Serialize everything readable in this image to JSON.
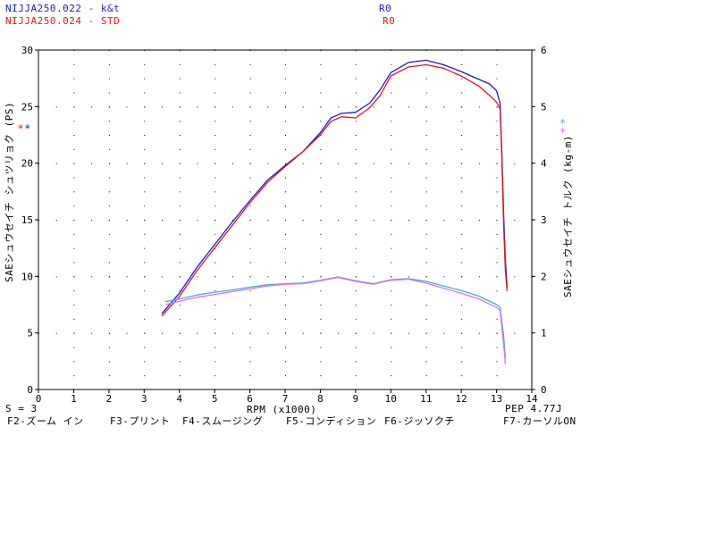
{
  "header": {
    "run1_name": "NIJJA250.022 - k&t",
    "run1_code": "R0",
    "run2_name": "NIJJA250.024 - STD",
    "run2_code": "R0"
  },
  "markers": {
    "left": "* *",
    "right_top": "*",
    "right_bottom": "*"
  },
  "status": {
    "smoothing": "S = 3",
    "pep": "PEP 4.77J"
  },
  "function_keys": [
    "F2-ズーム イン",
    "F3-プリント",
    "F4-スムージング",
    "F5-コンディション",
    "F6-ジッソクチ",
    "F7-カーソルON"
  ],
  "colors": {
    "run1_power": "#1a1acc",
    "run2_power": "#e01818",
    "run1_torque": "#4aa8e0",
    "run2_torque": "#e070e0",
    "grid_dots": "#000000"
  },
  "chart_data": {
    "type": "line",
    "xlabel": "RPM (x1000)",
    "ylabel": "SAEシュウセイチ シュツリョク (PS)",
    "ylabel_right": "SAEシュウセイチ トルク (kg-m)",
    "xlim": [
      0,
      14
    ],
    "ylim": [
      0,
      30
    ],
    "ylim_right": [
      0,
      6
    ],
    "x_ticks": [
      0,
      1,
      2,
      3,
      4,
      5,
      6,
      7,
      8,
      9,
      10,
      11,
      12,
      13,
      14
    ],
    "y_ticks": [
      0,
      5,
      10,
      15,
      20,
      25,
      30
    ],
    "y_ticks_right": [
      0,
      1,
      2,
      3,
      4,
      5,
      6
    ],
    "grid": "dotted",
    "series": [
      {
        "name": "NIJJA250.022 - k&t",
        "axis": "left",
        "x": [
          3.5,
          4.0,
          4.5,
          5.0,
          5.5,
          6.0,
          6.5,
          7.0,
          7.5,
          8.0,
          8.3,
          8.6,
          9.0,
          9.4,
          9.7,
          10.0,
          10.5,
          11.0,
          11.5,
          12.0,
          12.5,
          12.8,
          13.0,
          13.1,
          13.15,
          13.2,
          13.25,
          13.3
        ],
        "y": [
          6.7,
          8.5,
          10.8,
          12.8,
          14.8,
          16.7,
          18.5,
          19.8,
          21.0,
          22.7,
          24.0,
          24.4,
          24.5,
          25.3,
          26.5,
          28.0,
          28.9,
          29.1,
          28.7,
          28.1,
          27.4,
          27.0,
          26.4,
          25.3,
          21.0,
          15.5,
          11.5,
          9.0
        ]
      },
      {
        "name": "NIJJA250.024 - STD",
        "axis": "left",
        "x": [
          3.5,
          4.0,
          4.5,
          5.0,
          5.5,
          6.0,
          6.5,
          7.0,
          7.5,
          8.0,
          8.3,
          8.6,
          9.0,
          9.4,
          9.7,
          10.0,
          10.5,
          11.0,
          11.5,
          12.0,
          12.5,
          12.8,
          13.0,
          13.1,
          13.15,
          13.2,
          13.25,
          13.3
        ],
        "y": [
          6.5,
          8.2,
          10.5,
          12.5,
          14.5,
          16.5,
          18.3,
          19.7,
          21.0,
          22.5,
          23.7,
          24.1,
          24.0,
          24.9,
          26.0,
          27.7,
          28.5,
          28.7,
          28.4,
          27.7,
          26.8,
          26.0,
          25.4,
          24.8,
          20.5,
          14.5,
          10.5,
          8.7
        ]
      },
      {
        "name": "NIJJA250.022 - k&t",
        "axis": "right",
        "x": [
          3.6,
          4.0,
          4.5,
          5.0,
          5.5,
          6.0,
          6.5,
          7.0,
          7.5,
          8.0,
          8.5,
          9.0,
          9.5,
          10.0,
          10.5,
          11.0,
          11.5,
          12.0,
          12.5,
          13.0,
          13.1,
          13.2,
          13.25
        ],
        "y": [
          1.55,
          1.6,
          1.67,
          1.72,
          1.76,
          1.81,
          1.85,
          1.87,
          1.88,
          1.93,
          1.99,
          1.92,
          1.87,
          1.94,
          1.96,
          1.91,
          1.83,
          1.75,
          1.65,
          1.5,
          1.45,
          0.95,
          0.55
        ]
      },
      {
        "name": "NIJJA250.024 - STD",
        "axis": "right",
        "x": [
          3.6,
          4.0,
          4.5,
          5.0,
          5.5,
          6.0,
          6.5,
          7.0,
          7.5,
          8.0,
          8.5,
          9.0,
          9.5,
          10.0,
          10.5,
          11.0,
          11.5,
          12.0,
          12.5,
          13.0,
          13.1,
          13.2,
          13.25
        ],
        "y": [
          1.5,
          1.56,
          1.63,
          1.68,
          1.73,
          1.78,
          1.83,
          1.86,
          1.87,
          1.92,
          1.98,
          1.91,
          1.86,
          1.93,
          1.95,
          1.88,
          1.79,
          1.7,
          1.6,
          1.45,
          1.4,
          0.8,
          0.45
        ]
      }
    ]
  }
}
